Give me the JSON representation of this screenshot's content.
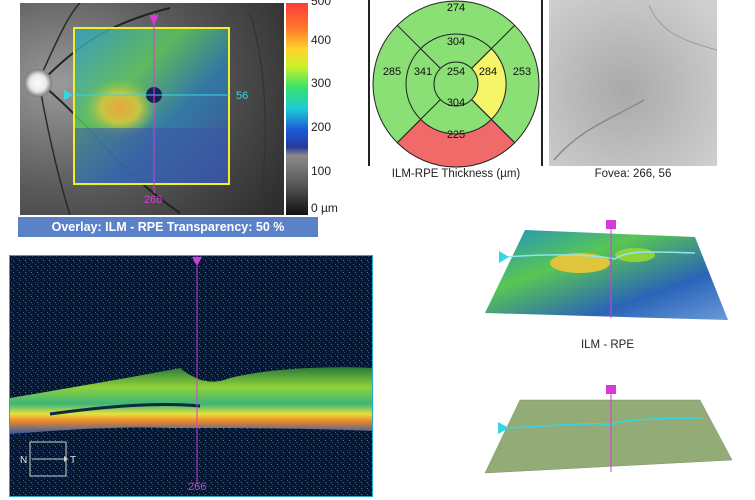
{
  "fundus": {
    "scan_h_label": "56",
    "scan_v_label": "266",
    "overlay_banner": "Overlay: ILM - RPE  Transparency: 50 %"
  },
  "colorbar": {
    "labels": [
      "500",
      "400",
      "300",
      "200",
      "100",
      "0 µm"
    ]
  },
  "thickness_map": {
    "superior_outer": "274",
    "superior_inner": "304",
    "temporal_outer": "285",
    "temporal_inner": "341",
    "center": "254",
    "nasal_inner": "284",
    "nasal_outer": "253",
    "inferior_inner": "304",
    "inferior_outer": "225",
    "caption": "ILM-RPE Thickness (µm)",
    "colors": {
      "green": "#8be075",
      "yellow": "#f5f56a",
      "red": "#f06a6a"
    }
  },
  "fovea": {
    "caption": "Fovea: 266, 56"
  },
  "bscan": {
    "nasal_label": "N",
    "temporal_label": "T",
    "position_label": "266"
  },
  "views_3d": {
    "ilm_caption": "ILM - RPE"
  }
}
